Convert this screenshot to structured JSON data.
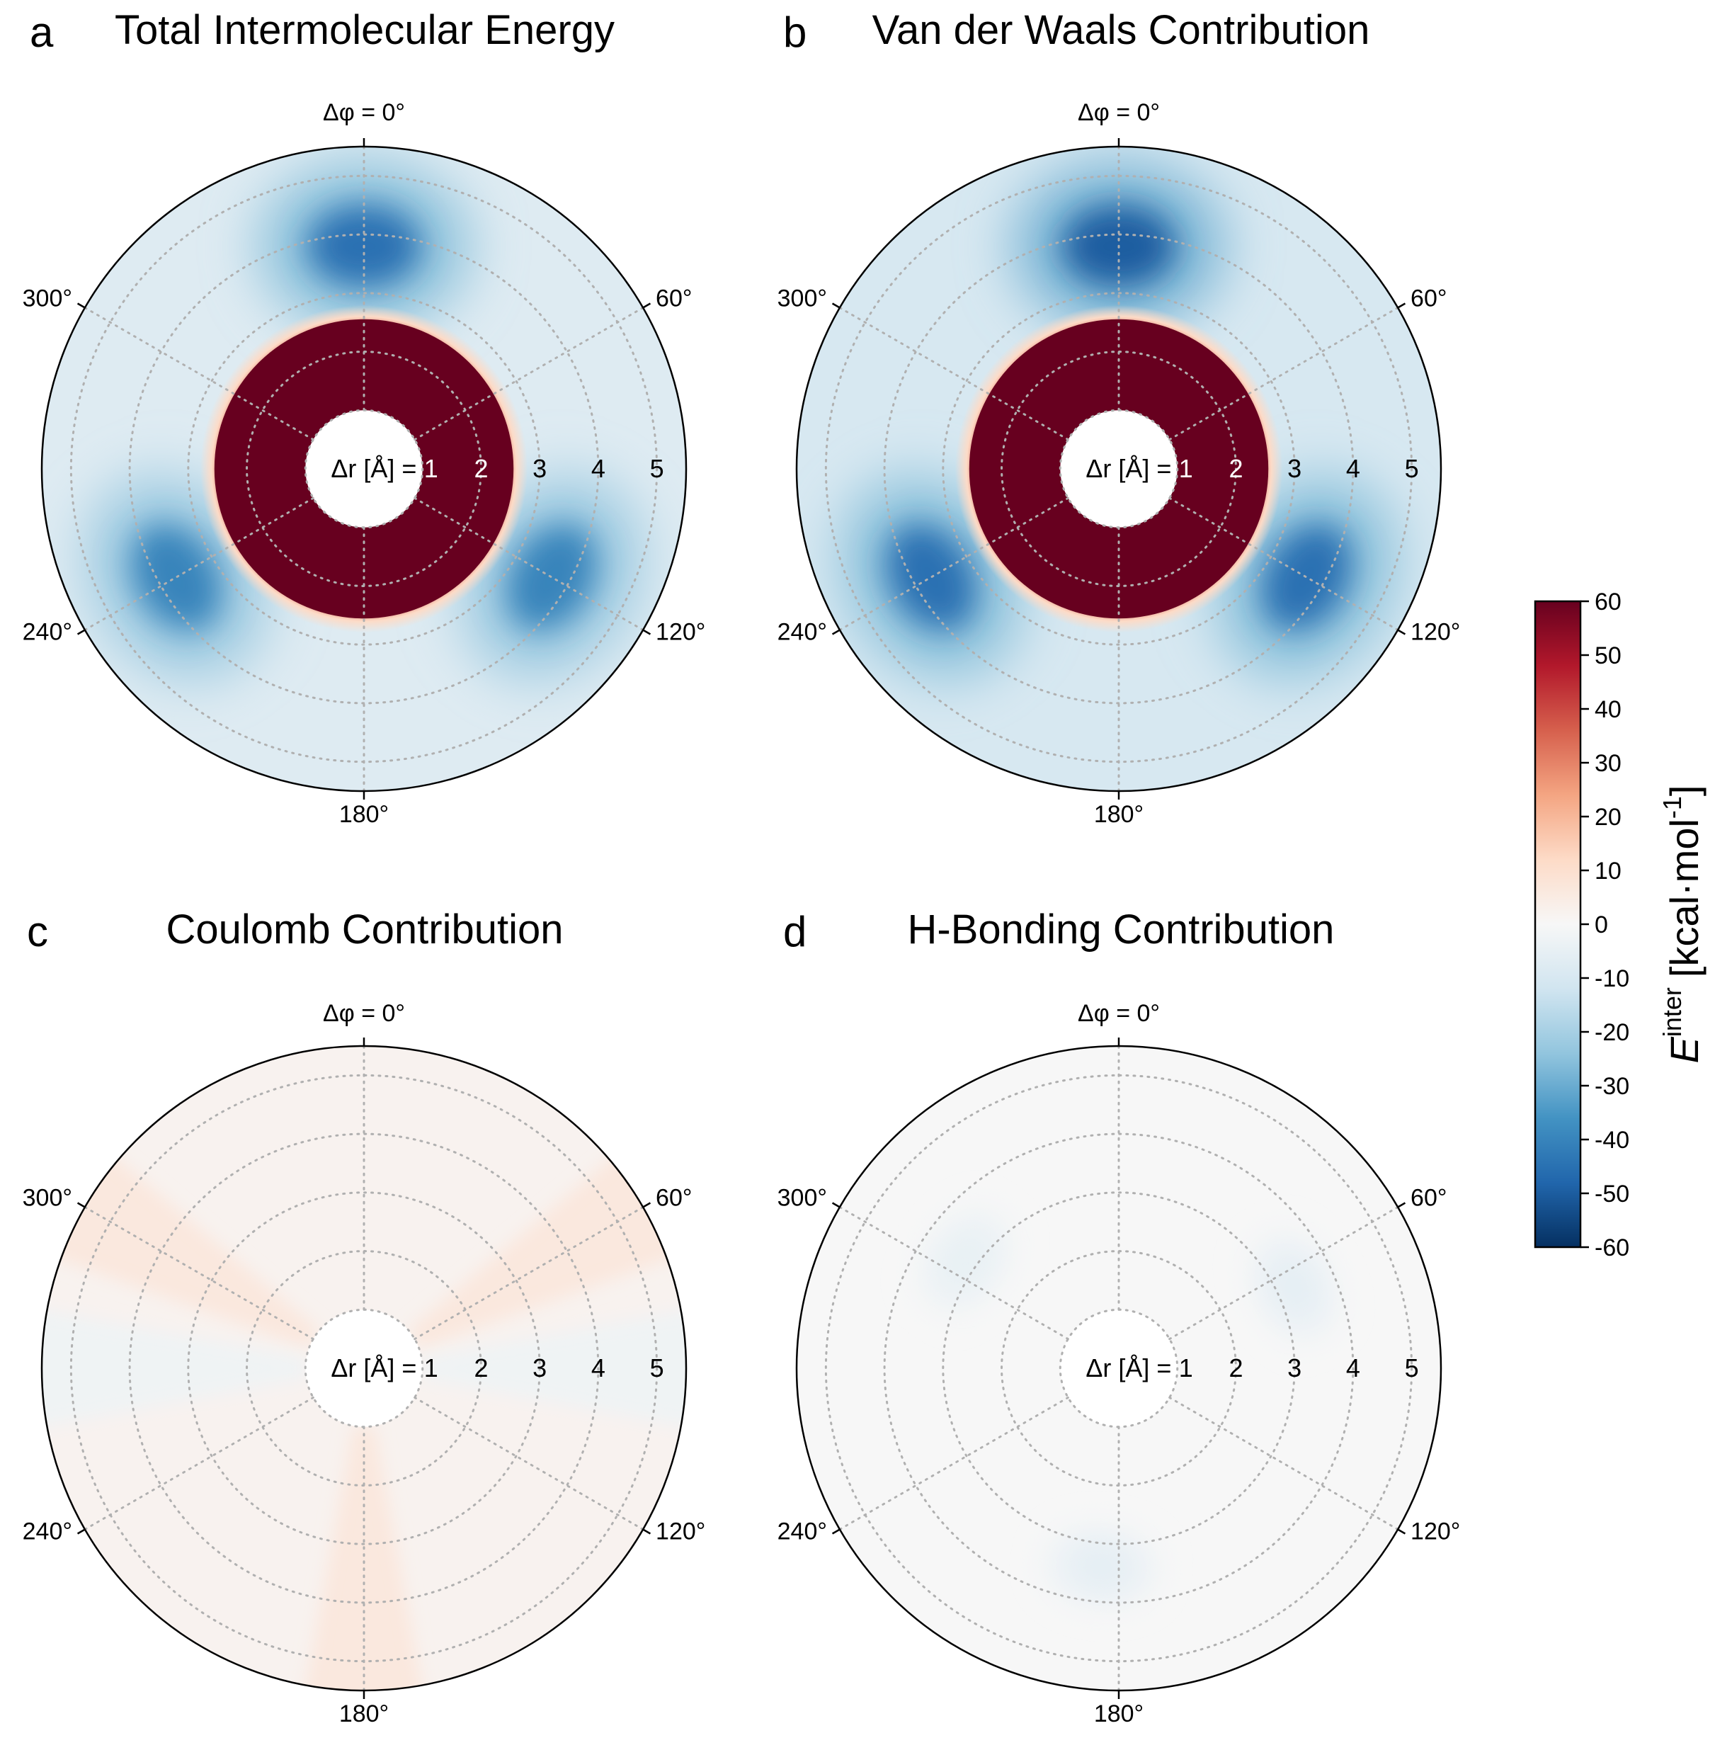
{
  "colors": {
    "repulsive_max": "#67001f",
    "neutral": "#f7f7f7",
    "attractive_max": "#053061",
    "grid": "#b0b0b0",
    "inner_radius_label_on_red": "#ffffff",
    "radius_label": "#000000"
  },
  "colorbar": {
    "label_main": "E",
    "label_sup": "inter",
    "label_unit": "[kcal·mol",
    "label_unit_sup": "-1",
    "label_unit_close": "]",
    "ticks": [
      "60",
      "50",
      "40",
      "30",
      "20",
      "10",
      "0",
      "-10",
      "-20",
      "-30",
      "-40",
      "-50",
      "-60"
    ],
    "vmin": -60,
    "vmax": 60,
    "colormap": "RdBu_r"
  },
  "chart_data": [
    {
      "type": "heatmap",
      "projection": "polar",
      "letter": "a",
      "title": "Total Intermolecular Energy",
      "theta_label_top": "Δφ = 0°",
      "theta_labels": [
        "60°",
        "120°",
        "180°",
        "240°",
        "300°"
      ],
      "theta_ticks_deg": [
        0,
        60,
        120,
        180,
        240,
        300
      ],
      "r_label_prefix": "Δr [Å] =",
      "r_ticks": [
        "1",
        "2",
        "3",
        "4",
        "5"
      ],
      "r_range": [
        0,
        5.5
      ],
      "inner_hole_radius": 1,
      "colorbar_range": [
        -60,
        60
      ],
      "grid": true,
      "features": {
        "repulsive_core": {
          "r_inner": 1.0,
          "r_outer": 2.65,
          "value": 60
        },
        "minima": [
          {
            "theta_deg": 0,
            "r": 3.8,
            "value": -45
          },
          {
            "theta_deg": 120,
            "r": 3.7,
            "value": -40
          },
          {
            "theta_deg": 240,
            "r": 3.7,
            "value": -40
          }
        ],
        "background": -8
      }
    },
    {
      "type": "heatmap",
      "projection": "polar",
      "letter": "b",
      "title": "Van der Waals Contribution",
      "theta_label_top": "Δφ = 0°",
      "theta_labels": [
        "60°",
        "120°",
        "180°",
        "240°",
        "300°"
      ],
      "theta_ticks_deg": [
        0,
        60,
        120,
        180,
        240,
        300
      ],
      "r_label_prefix": "Δr [Å] =",
      "r_ticks": [
        "1",
        "2",
        "3",
        "4",
        "5"
      ],
      "r_range": [
        0,
        5.5
      ],
      "inner_hole_radius": 1,
      "colorbar_range": [
        -60,
        60
      ],
      "grid": true,
      "features": {
        "repulsive_core": {
          "r_inner": 1.0,
          "r_outer": 2.65,
          "value": 60
        },
        "minima": [
          {
            "theta_deg": 0,
            "r": 3.8,
            "value": -50
          },
          {
            "theta_deg": 120,
            "r": 3.7,
            "value": -45
          },
          {
            "theta_deg": 240,
            "r": 3.7,
            "value": -45
          }
        ],
        "background": -10
      }
    },
    {
      "type": "heatmap",
      "projection": "polar",
      "letter": "c",
      "title": "Coulomb Contribution",
      "theta_label_top": "Δφ = 0°",
      "theta_labels": [
        "60°",
        "120°",
        "180°",
        "240°",
        "300°"
      ],
      "theta_ticks_deg": [
        0,
        60,
        120,
        180,
        240,
        300
      ],
      "r_label_prefix": "Δr [Å] =",
      "r_ticks": [
        "1",
        "2",
        "3",
        "4",
        "5"
      ],
      "r_range": [
        0,
        5.5
      ],
      "inner_hole_radius": 1,
      "colorbar_range": [
        -60,
        60
      ],
      "grid": true,
      "features": {
        "repulsive_core": null,
        "rays": [
          {
            "theta_deg": 60,
            "value": 7
          },
          {
            "theta_deg": 180,
            "value": 7
          },
          {
            "theta_deg": 300,
            "value": 7
          },
          {
            "theta_deg": 90,
            "value": -3
          },
          {
            "theta_deg": 270,
            "value": -3
          }
        ],
        "background": 2
      }
    },
    {
      "type": "heatmap",
      "projection": "polar",
      "letter": "d",
      "title": "H-Bonding Contribution",
      "theta_label_top": "Δφ = 0°",
      "theta_labels": [
        "60°",
        "120°",
        "180°",
        "240°",
        "300°"
      ],
      "theta_ticks_deg": [
        0,
        60,
        120,
        180,
        240,
        300
      ],
      "r_label_prefix": "Δr [Å] =",
      "r_ticks": [
        "1",
        "2",
        "3",
        "4",
        "5"
      ],
      "r_range": [
        0,
        5.5
      ],
      "inner_hole_radius": 1,
      "colorbar_range": [
        -60,
        60
      ],
      "grid": true,
      "features": {
        "repulsive_core": null,
        "minima": [
          {
            "theta_deg": 65,
            "r": 3.3,
            "value": -6
          },
          {
            "theta_deg": 185,
            "r": 3.4,
            "value": -6
          },
          {
            "theta_deg": 305,
            "r": 3.2,
            "value": -5
          }
        ],
        "background": 0
      }
    }
  ]
}
